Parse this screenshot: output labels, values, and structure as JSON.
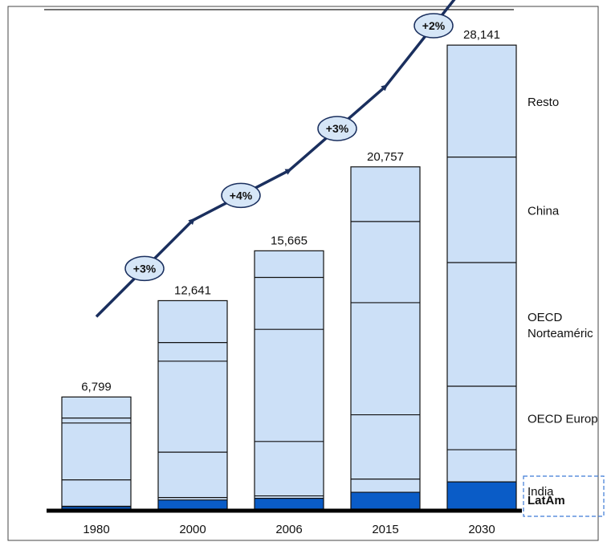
{
  "chart_data": {
    "type": "bar",
    "stacked": true,
    "categories": [
      "1980",
      "2000",
      "2006",
      "2015",
      "2030"
    ],
    "totals": [
      6799,
      12641,
      15665,
      20757,
      28141
    ],
    "total_labels": [
      "6,799",
      "12,641",
      "15,665",
      "20,757",
      "28,141"
    ],
    "series": [
      {
        "name": "LatAm",
        "values": [
          150,
          550,
          650,
          1020,
          1650
        ]
      },
      {
        "name": "India",
        "values": [
          20,
          150,
          150,
          800,
          1950
        ]
      },
      {
        "name": "OECD Europ",
        "values": [
          1600,
          2750,
          3300,
          3900,
          3850
        ]
      },
      {
        "name": "OECD Norteaméric",
        "values": [
          3450,
          5520,
          6800,
          6800,
          7500
        ]
      },
      {
        "name": "China",
        "values": [
          300,
          1130,
          3150,
          4920,
          6400
        ]
      },
      {
        "name": "Resto",
        "values": [
          1279,
          2541,
          1615,
          3317,
          6791
        ]
      }
    ],
    "legend_labels": [
      {
        "series": "Resto",
        "lines": [
          "Resto"
        ]
      },
      {
        "series": "China",
        "lines": [
          "China"
        ]
      },
      {
        "series": "OECD Norteaméric",
        "lines": [
          "OECD",
          "Norteaméric"
        ]
      },
      {
        "series": "OECD Europ",
        "lines": [
          "OECD Europ"
        ]
      },
      {
        "series": "India",
        "lines": [
          "India"
        ]
      },
      {
        "series": "LatAm",
        "lines": [
          "LatAm"
        ]
      }
    ],
    "growth_labels": [
      "+3%",
      "+4%",
      "+3%",
      "+2%"
    ],
    "ylim": [
      0,
      30000
    ],
    "legend_position": "right",
    "grid": false,
    "colors": {
      "bar_fill": "#cce0f7",
      "latam_fill": "#0a5cc7",
      "segment_line": "#111111",
      "arrow": "#1a2f5e",
      "badge_fill": "#d6e6f7",
      "legend_box": "#3d7ad6"
    }
  }
}
